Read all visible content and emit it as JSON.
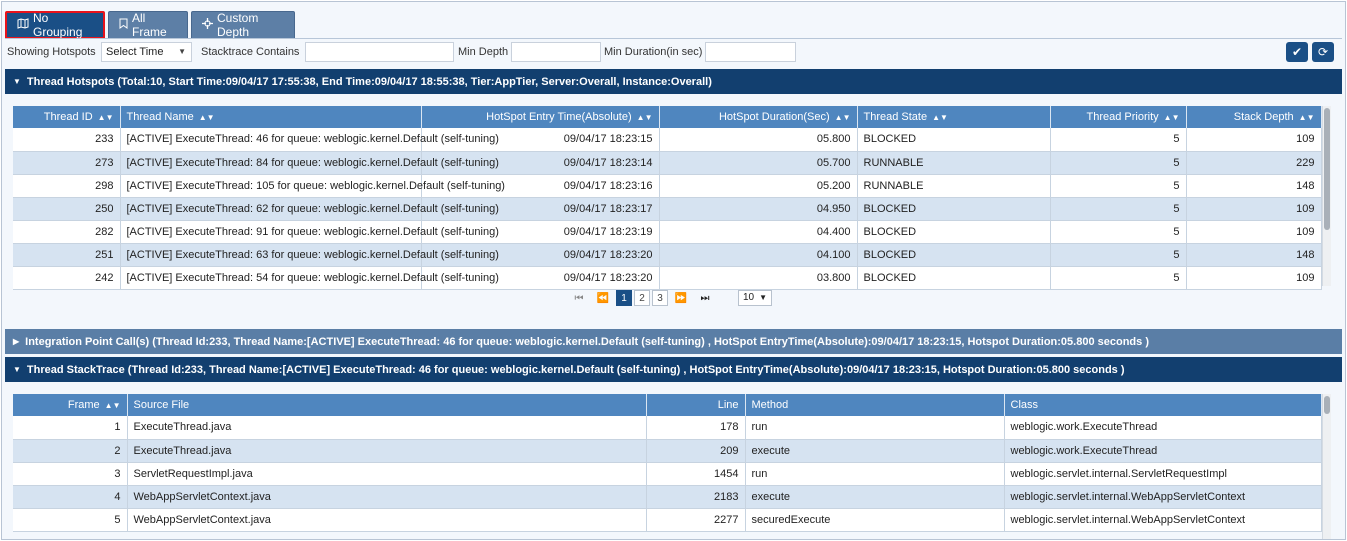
{
  "tabs": [
    {
      "label": "No Grouping",
      "icon": "map-icon",
      "active": true
    },
    {
      "label": "All Frame",
      "icon": "bookmark-icon",
      "active": false
    },
    {
      "label": "Custom Depth",
      "icon": "crosshair-icon",
      "active": false
    }
  ],
  "filters": {
    "showing_label": "Showing Hotspots",
    "select_value": "Select Time",
    "stacktrace_label": "Stacktrace Contains",
    "stacktrace_value": "",
    "min_depth_label": "Min Depth",
    "min_depth_value": "",
    "min_duration_label": "Min Duration(in sec)",
    "min_duration_value": ""
  },
  "hotspots": {
    "title": "Thread Hotspots (Total:10, Start Time:09/04/17 17:55:38, End Time:09/04/17 18:55:38, Tier:AppTier, Server:Overall, Instance:Overall)",
    "columns": [
      "Thread ID",
      "Thread Name",
      "HotSpot Entry Time(Absolute)",
      "HotSpot Duration(Sec)",
      "Thread State",
      "Thread Priority",
      "Stack Depth"
    ],
    "rows": [
      {
        "id": "233",
        "name": "[ACTIVE] ExecuteThread: 46 for queue: weblogic.kernel.Default (self-tuning)",
        "entry": "09/04/17 18:23:15",
        "duration": "05.800",
        "state": "BLOCKED",
        "priority": "5",
        "depth": "109"
      },
      {
        "id": "273",
        "name": "[ACTIVE] ExecuteThread: 84 for queue: weblogic.kernel.Default (self-tuning)",
        "entry": "09/04/17 18:23:14",
        "duration": "05.700",
        "state": "RUNNABLE",
        "priority": "5",
        "depth": "229"
      },
      {
        "id": "298",
        "name": "[ACTIVE] ExecuteThread: 105 for queue: weblogic.kernel.Default (self-tuning)",
        "entry": "09/04/17 18:23:16",
        "duration": "05.200",
        "state": "RUNNABLE",
        "priority": "5",
        "depth": "148"
      },
      {
        "id": "250",
        "name": "[ACTIVE] ExecuteThread: 62 for queue: weblogic.kernel.Default (self-tuning)",
        "entry": "09/04/17 18:23:17",
        "duration": "04.950",
        "state": "BLOCKED",
        "priority": "5",
        "depth": "109"
      },
      {
        "id": "282",
        "name": "[ACTIVE] ExecuteThread: 91 for queue: weblogic.kernel.Default (self-tuning)",
        "entry": "09/04/17 18:23:19",
        "duration": "04.400",
        "state": "BLOCKED",
        "priority": "5",
        "depth": "109"
      },
      {
        "id": "251",
        "name": "[ACTIVE] ExecuteThread: 63 for queue: weblogic.kernel.Default (self-tuning)",
        "entry": "09/04/17 18:23:20",
        "duration": "04.100",
        "state": "BLOCKED",
        "priority": "5",
        "depth": "148"
      },
      {
        "id": "242",
        "name": "[ACTIVE] ExecuteThread: 54 for queue: weblogic.kernel.Default (self-tuning)",
        "entry": "09/04/17 18:23:20",
        "duration": "03.800",
        "state": "BLOCKED",
        "priority": "5",
        "depth": "109"
      }
    ]
  },
  "pager": {
    "first": "⏮",
    "prev": "⏪",
    "next": "⏩",
    "last": "⏭",
    "pages": [
      "1",
      "2",
      "3"
    ],
    "page_size": "10"
  },
  "integration": {
    "title": "Integration Point Call(s) (Thread Id:233, Thread Name:[ACTIVE] ExecuteThread: 46 for queue: weblogic.kernel.Default (self-tuning) , HotSpot EntryTime(Absolute):09/04/17 18:23:15, Hotspot Duration:05.800 seconds )"
  },
  "stacktrace": {
    "title": "Thread StackTrace (Thread Id:233, Thread Name:[ACTIVE] ExecuteThread: 46 for queue: weblogic.kernel.Default (self-tuning) , HotSpot EntryTime(Absolute):09/04/17 18:23:15, Hotspot Duration:05.800 seconds )",
    "columns": [
      "Frame",
      "Source File",
      "Line",
      "Method",
      "Class"
    ],
    "rows": [
      {
        "frame": "1",
        "file": "ExecuteThread.java",
        "line": "178",
        "method": "run",
        "class": "weblogic.work.ExecuteThread"
      },
      {
        "frame": "2",
        "file": "ExecuteThread.java",
        "line": "209",
        "method": "execute",
        "class": "weblogic.work.ExecuteThread"
      },
      {
        "frame": "3",
        "file": "ServletRequestImpl.java",
        "line": "1454",
        "method": "run",
        "class": "weblogic.servlet.internal.ServletRequestImpl"
      },
      {
        "frame": "4",
        "file": "WebAppServletContext.java",
        "line": "2183",
        "method": "execute",
        "class": "weblogic.servlet.internal.WebAppServletContext"
      },
      {
        "frame": "5",
        "file": "WebAppServletContext.java",
        "line": "2277",
        "method": "securedExecute",
        "class": "weblogic.servlet.internal.WebAppServletContext"
      }
    ]
  }
}
